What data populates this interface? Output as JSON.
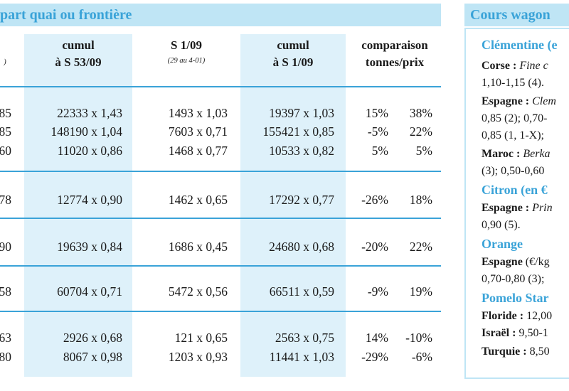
{
  "title": "part quai ou frontière",
  "headers": {
    "col0_sub": ")",
    "cumul1": "cumul",
    "cumul1_sub": "à S 53/09",
    "s1": "S 1/09",
    "s1_sub": "(29 au 4-01)",
    "cumul2": "cumul",
    "cumul2_sub": "à S 1/09",
    "comp": "comparaison",
    "comp_sub": "tonnes/prix"
  },
  "rows": [
    {
      "c0": "85",
      "c1": "22333 x 1,43",
      "c2": "1493 x 1,03",
      "c3": "19397 x 1,03",
      "c4": "15%",
      "c5": "38%"
    },
    {
      "c0": "85",
      "c1": "148190 x 1,04",
      "c2": "7603 x 0,71",
      "c3": "155421 x 0,85",
      "c4": "-5%",
      "c5": "22%"
    },
    {
      "c0": "60",
      "c1": "11020 x 0,86",
      "c2": "1468 x 0,77",
      "c3": "10533 x 0,82",
      "c4": "5%",
      "c5": "5%"
    },
    {
      "c0": "78",
      "c1": "12774 x 0,90",
      "c2": "1462 x 0,65",
      "c3": "17292 x 0,77",
      "c4": "-26%",
      "c5": "18%"
    },
    {
      "c0": "90",
      "c1": "19639 x 0,84",
      "c2": "1686 x 0,45",
      "c3": "24680 x 0,68",
      "c4": "-20%",
      "c5": "22%"
    },
    {
      "c0": "58",
      "c1": "60704 x 0,71",
      "c2": "5472 x 0,56",
      "c3": "66511 x 0,59",
      "c4": "-9%",
      "c5": "19%"
    },
    {
      "c0": "63",
      "c1": "2926 x 0,68",
      "c2": "121 x 0,65",
      "c3": "2563 x 0,75",
      "c4": "14%",
      "c5": "-10%"
    },
    {
      "c0": "80",
      "c1": "8067 x 0,98",
      "c2": "1203 x 0,93",
      "c3": "11441 x 1,03",
      "c4": "-29%",
      "c5": "-6%"
    }
  ],
  "sidebar": {
    "title": "Cours wagon",
    "lines": [
      {
        "type": "cat",
        "text": "Clémentine (e"
      },
      {
        "type": "mixed",
        "bold": "Corse :",
        "italic": " Fine c",
        "plain": ""
      },
      {
        "type": "plain",
        "text": "1,10-1,15 (4)."
      },
      {
        "type": "mixed",
        "bold": "Espagne :",
        "italic": " Clem",
        "plain": ""
      },
      {
        "type": "plain",
        "text": "0,85 (2); 0,70-"
      },
      {
        "type": "plain",
        "text": "0,85 (1, 1-X);"
      },
      {
        "type": "mixed",
        "bold": "Maroc :",
        "italic": " Berka",
        "plain": ""
      },
      {
        "type": "plain",
        "text": "(3); 0,50-0,60"
      },
      {
        "type": "cat",
        "text": "Citron (en €"
      },
      {
        "type": "mixed",
        "bold": "Espagne :",
        "italic": " Prin",
        "plain": ""
      },
      {
        "type": "plain",
        "text": "0,90 (5)."
      },
      {
        "type": "cat",
        "text": "Orange"
      },
      {
        "type": "mixed",
        "bold": "Espagne",
        "italic": "",
        "plain": " (€/kg"
      },
      {
        "type": "plain",
        "text": "0,70-0,80 (3);"
      },
      {
        "type": "cat",
        "text": "Pomelo Star"
      },
      {
        "type": "mixed",
        "bold": "Floride :",
        "italic": "",
        "plain": " 12,00"
      },
      {
        "type": "mixed",
        "bold": "Israël :",
        "italic": "",
        "plain": " 9,50-1"
      },
      {
        "type": "mixed",
        "bold": "Turquie :",
        "italic": "",
        "plain": " 8,50"
      }
    ]
  }
}
